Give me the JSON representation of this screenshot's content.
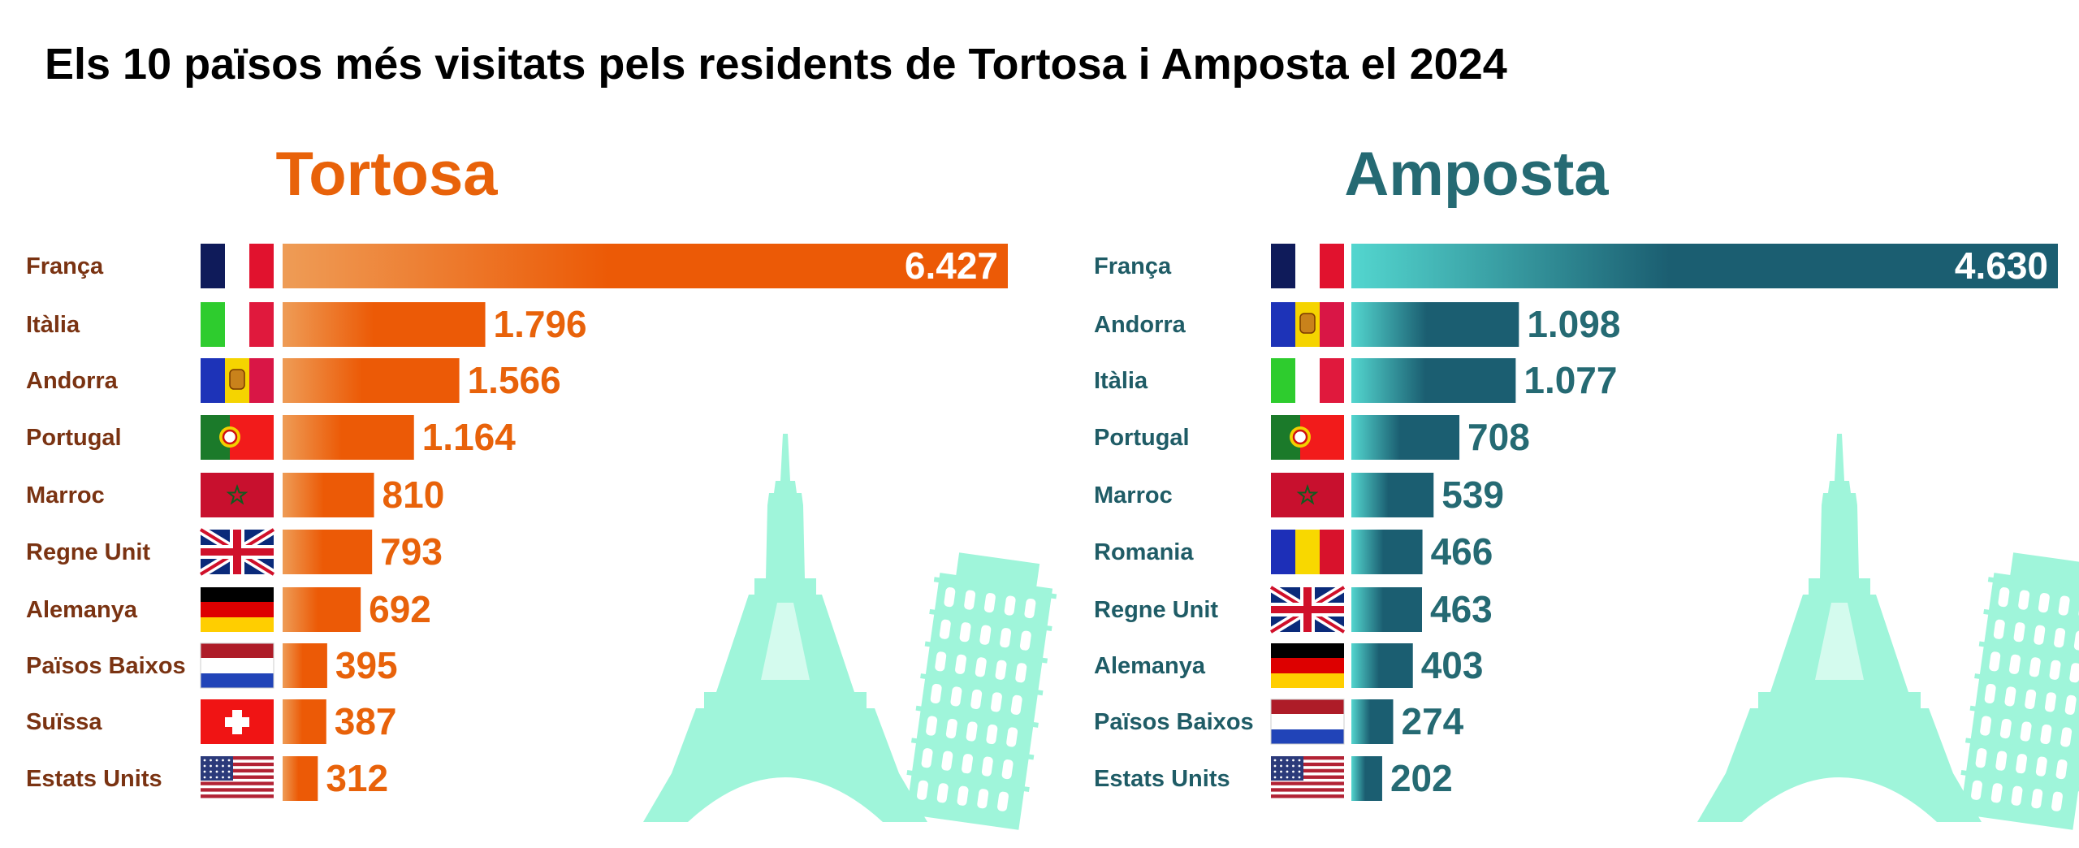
{
  "title": "Els 10 països més visitats pels residents de Tortosa i Amposta el 2024",
  "colors": {
    "tortosa_title": "#E8620A",
    "tortosa_label": "#7A3312",
    "tortosa_value": "#E8620A",
    "tortosa_bar_start": "#EE9C56",
    "tortosa_bar_end": "#EC5A06",
    "amposta_title": "#256A73",
    "amposta_label": "#1F5C66",
    "amposta_value": "#256A73",
    "amposta_bar_start": "#53D6CF",
    "amposta_bar_end": "#1B5E71",
    "landmark": "#9FF5DA"
  },
  "chart_data": [
    {
      "type": "bar",
      "title": "Tortosa",
      "categories": [
        "França",
        "Itàlia",
        "Andorra",
        "Portugal",
        "Marroc",
        "Regne Unit",
        "Alemanya",
        "Països Baixos",
        "Suïssa",
        "Estats Units"
      ],
      "values": [
        6427,
        1796,
        1566,
        1164,
        810,
        793,
        692,
        395,
        387,
        312
      ],
      "value_labels": [
        "6.427",
        "1.796",
        "1.566",
        "1.164",
        "810",
        "793",
        "692",
        "395",
        "387",
        "312"
      ],
      "flags": [
        "france-flag",
        "italy-flag",
        "andorra-flag",
        "portugal-flag",
        "morocco-flag",
        "uk-flag",
        "germany-flag",
        "netherlands-flag",
        "switzerland-flag",
        "usa-flag"
      ],
      "decoration": [
        "eiffel-tower-icon",
        "pisa-tower-icon"
      ]
    },
    {
      "type": "bar",
      "title": "Amposta",
      "categories": [
        "França",
        "Andorra",
        "Itàlia",
        "Portugal",
        "Marroc",
        "Romania",
        "Regne Unit",
        "Alemanya",
        "Països Baixos",
        "Estats Units"
      ],
      "values": [
        4630,
        1098,
        1077,
        708,
        539,
        466,
        463,
        403,
        274,
        202
      ],
      "value_labels": [
        "4.630",
        "1.098",
        "1.077",
        "708",
        "539",
        "466",
        "463",
        "403",
        "274",
        "202"
      ],
      "flags": [
        "france-flag",
        "andorra-flag",
        "italy-flag",
        "portugal-flag",
        "morocco-flag",
        "romania-flag",
        "uk-flag",
        "germany-flag",
        "netherlands-flag",
        "usa-flag"
      ],
      "decoration": [
        "eiffel-tower-icon",
        "pisa-tower-icon"
      ]
    }
  ]
}
